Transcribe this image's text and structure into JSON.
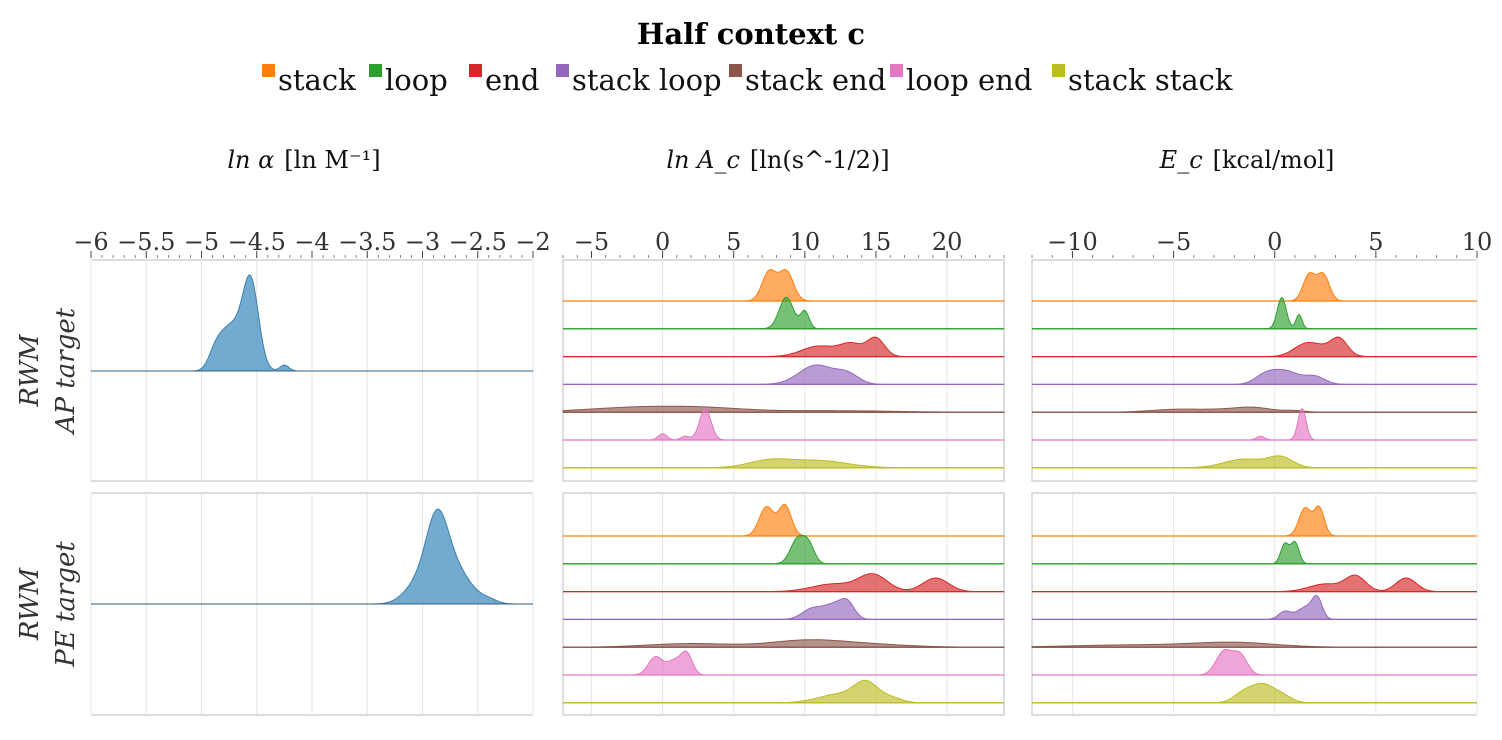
{
  "chart_data": {
    "type": "area",
    "title": "Half context c",
    "legend": [
      {
        "name": "stack",
        "color": "#ff7f0e"
      },
      {
        "name": "loop",
        "color": "#2ca02c"
      },
      {
        "name": "end",
        "color": "#d62728"
      },
      {
        "name": "stack loop",
        "color": "#9467bd"
      },
      {
        "name": "stack end",
        "color": "#8c564b"
      },
      {
        "name": "loop end",
        "color": "#e377c2"
      },
      {
        "name": "stack stack",
        "color": "#bcbd22"
      }
    ],
    "legend_position": "top-center",
    "columns": [
      {
        "label_main": "ln α",
        "label_unit": "[ln M⁻¹]",
        "xlim": [
          -6,
          -2
        ],
        "ticks": [
          -6,
          -5.5,
          -5,
          -4.5,
          -4,
          -3.5,
          -3,
          -2.5,
          -2
        ],
        "tick_labels": [
          "−6",
          "−5.5",
          "−5",
          "−4.5",
          "−4",
          "−3.5",
          "−3",
          "−2.5",
          "−2"
        ]
      },
      {
        "label_main": "ln A_c",
        "label_unit": "[ln(s^-1/2)]",
        "xlim": [
          -7,
          24
        ],
        "ticks": [
          -5,
          0,
          5,
          10,
          15,
          20
        ],
        "tick_labels": [
          "−5",
          "0",
          "5",
          "10",
          "15",
          "20"
        ]
      },
      {
        "label_main": "E_c",
        "label_unit": "[kcal/mol]",
        "xlim": [
          -12,
          10
        ],
        "ticks": [
          -10,
          -5,
          0,
          5,
          10
        ],
        "tick_labels": [
          "−10",
          "−5",
          "0",
          "5",
          "10"
        ]
      }
    ],
    "rows": [
      {
        "label_line1": "RWM",
        "label_line2": "AP target"
      },
      {
        "label_line1": "RWM",
        "label_line2": "PE target"
      }
    ],
    "alpha_panels": [
      {
        "row": 0,
        "color": "#5b9bc8",
        "components": [
          {
            "mu": -4.55,
            "sigma": 0.07,
            "w": 1.0
          },
          {
            "mu": -4.65,
            "sigma": 0.1,
            "w": 0.45
          },
          {
            "mu": -4.78,
            "sigma": 0.08,
            "w": 0.35
          },
          {
            "mu": -4.88,
            "sigma": 0.06,
            "w": 0.2
          },
          {
            "mu": -4.25,
            "sigma": 0.04,
            "w": 0.08
          }
        ]
      },
      {
        "row": 1,
        "color": "#5b9bc8",
        "components": [
          {
            "mu": -2.87,
            "sigma": 0.1,
            "w": 1.0
          },
          {
            "mu": -2.7,
            "sigma": 0.14,
            "w": 0.45
          },
          {
            "mu": -3.05,
            "sigma": 0.12,
            "w": 0.25
          },
          {
            "mu": -2.4,
            "sigma": 0.08,
            "w": 0.05
          }
        ]
      }
    ],
    "ridge_panels": [
      {
        "row": 0,
        "col": 1,
        "series": [
          {
            "name": "stack",
            "components": [
              {
                "mu": 7.5,
                "sigma": 0.5,
                "w": 1
              },
              {
                "mu": 8.7,
                "sigma": 0.5,
                "w": 1
              }
            ]
          },
          {
            "name": "loop",
            "components": [
              {
                "mu": 8.7,
                "sigma": 0.5,
                "w": 1
              },
              {
                "mu": 10.0,
                "sigma": 0.3,
                "w": 0.55
              }
            ]
          },
          {
            "name": "end",
            "components": [
              {
                "mu": 11.0,
                "sigma": 1.2,
                "w": 0.35
              },
              {
                "mu": 13.3,
                "sigma": 0.8,
                "w": 0.4
              },
              {
                "mu": 15.0,
                "sigma": 0.6,
                "w": 0.6
              }
            ]
          },
          {
            "name": "stack loop",
            "components": [
              {
                "mu": 10.8,
                "sigma": 1.2,
                "w": 0.6
              },
              {
                "mu": 13.0,
                "sigma": 0.8,
                "w": 0.3
              }
            ]
          },
          {
            "name": "stack end",
            "components": [
              {
                "mu": -2,
                "sigma": 3.5,
                "w": 0.15
              },
              {
                "mu": 3,
                "sigma": 3,
                "w": 0.12
              },
              {
                "mu": 12,
                "sigma": 4,
                "w": 0.05
              }
            ]
          },
          {
            "name": "loop end",
            "components": [
              {
                "mu": 3.0,
                "sigma": 0.4,
                "w": 1
              },
              {
                "mu": 0.0,
                "sigma": 0.3,
                "w": 0.2
              },
              {
                "mu": 1.6,
                "sigma": 0.3,
                "w": 0.12
              }
            ]
          },
          {
            "name": "stack stack",
            "components": [
              {
                "mu": 7.5,
                "sigma": 1.5,
                "w": 0.25
              },
              {
                "mu": 11.0,
                "sigma": 2,
                "w": 0.25
              }
            ]
          }
        ]
      },
      {
        "row": 1,
        "col": 1,
        "series": [
          {
            "name": "stack",
            "components": [
              {
                "mu": 7.3,
                "sigma": 0.5,
                "w": 1
              },
              {
                "mu": 8.6,
                "sigma": 0.45,
                "w": 1.05
              }
            ]
          },
          {
            "name": "loop",
            "components": [
              {
                "mu": 9.5,
                "sigma": 0.5,
                "w": 0.9
              },
              {
                "mu": 10.3,
                "sigma": 0.4,
                "w": 0.6
              }
            ]
          },
          {
            "name": "end",
            "components": [
              {
                "mu": 12,
                "sigma": 1.5,
                "w": 0.25
              },
              {
                "mu": 14.8,
                "sigma": 1,
                "w": 0.55
              },
              {
                "mu": 19.2,
                "sigma": 0.9,
                "w": 0.45
              }
            ]
          },
          {
            "name": "stack loop",
            "components": [
              {
                "mu": 10.5,
                "sigma": 0.7,
                "w": 0.45
              },
              {
                "mu": 12.0,
                "sigma": 0.7,
                "w": 0.6
              },
              {
                "mu": 13.0,
                "sigma": 0.5,
                "w": 0.65
              }
            ]
          },
          {
            "name": "stack end",
            "components": [
              {
                "mu": 2,
                "sigma": 3,
                "w": 0.12
              },
              {
                "mu": 10,
                "sigma": 2.5,
                "w": 0.2
              },
              {
                "mu": 14,
                "sigma": 3,
                "w": 0.1
              }
            ]
          },
          {
            "name": "loop end",
            "components": [
              {
                "mu": -0.5,
                "sigma": 0.5,
                "w": 0.65
              },
              {
                "mu": 0.8,
                "sigma": 0.5,
                "w": 0.5
              },
              {
                "mu": 1.7,
                "sigma": 0.4,
                "w": 0.75
              }
            ]
          },
          {
            "name": "stack stack",
            "components": [
              {
                "mu": 12.5,
                "sigma": 1.5,
                "w": 0.35
              },
              {
                "mu": 14.3,
                "sigma": 0.8,
                "w": 0.7
              },
              {
                "mu": 16,
                "sigma": 0.8,
                "w": 0.2
              }
            ]
          }
        ]
      },
      {
        "row": 0,
        "col": 2,
        "series": [
          {
            "name": "stack",
            "components": [
              {
                "mu": 1.7,
                "sigma": 0.3,
                "w": 0.9
              },
              {
                "mu": 2.4,
                "sigma": 0.3,
                "w": 0.9
              }
            ]
          },
          {
            "name": "loop",
            "components": [
              {
                "mu": 0.35,
                "sigma": 0.22,
                "w": 1.1
              },
              {
                "mu": 1.2,
                "sigma": 0.15,
                "w": 0.5
              }
            ]
          },
          {
            "name": "end",
            "components": [
              {
                "mu": 1.5,
                "sigma": 0.6,
                "w": 0.45
              },
              {
                "mu": 3.2,
                "sigma": 0.4,
                "w": 0.6
              },
              {
                "mu": 2.5,
                "sigma": 0.7,
                "w": 0.3
              }
            ]
          },
          {
            "name": "stack loop",
            "components": [
              {
                "mu": 0.5,
                "sigma": 0.7,
                "w": 0.45
              },
              {
                "mu": -0.5,
                "sigma": 0.5,
                "w": 0.25
              },
              {
                "mu": 2.0,
                "sigma": 0.5,
                "w": 0.25
              }
            ]
          },
          {
            "name": "stack end",
            "components": [
              {
                "mu": -5,
                "sigma": 1.2,
                "w": 0.1
              },
              {
                "mu": -2,
                "sigma": 1.5,
                "w": 0.12
              },
              {
                "mu": -1,
                "sigma": 0.8,
                "w": 0.1
              },
              {
                "mu": 1,
                "sigma": 0.5,
                "w": 0.05
              }
            ]
          },
          {
            "name": "loop end",
            "components": [
              {
                "mu": 1.35,
                "sigma": 0.2,
                "w": 1
              },
              {
                "mu": -0.7,
                "sigma": 0.2,
                "w": 0.12
              }
            ]
          },
          {
            "name": "stack stack",
            "components": [
              {
                "mu": -1.5,
                "sigma": 1.0,
                "w": 0.3
              },
              {
                "mu": 0.3,
                "sigma": 0.6,
                "w": 0.35
              }
            ]
          }
        ]
      },
      {
        "row": 1,
        "col": 2,
        "series": [
          {
            "name": "stack",
            "components": [
              {
                "mu": 1.5,
                "sigma": 0.3,
                "w": 0.95
              },
              {
                "mu": 2.2,
                "sigma": 0.25,
                "w": 0.95
              }
            ]
          },
          {
            "name": "loop",
            "components": [
              {
                "mu": 0.5,
                "sigma": 0.2,
                "w": 0.65
              },
              {
                "mu": 1.0,
                "sigma": 0.2,
                "w": 0.7
              }
            ]
          },
          {
            "name": "end",
            "components": [
              {
                "mu": 2.5,
                "sigma": 0.8,
                "w": 0.25
              },
              {
                "mu": 4.0,
                "sigma": 0.5,
                "w": 0.5
              },
              {
                "mu": 6.5,
                "sigma": 0.5,
                "w": 0.45
              }
            ]
          },
          {
            "name": "stack loop",
            "components": [
              {
                "mu": 0.5,
                "sigma": 0.3,
                "w": 0.3
              },
              {
                "mu": 1.5,
                "sigma": 0.4,
                "w": 0.45
              },
              {
                "mu": 2.1,
                "sigma": 0.25,
                "w": 0.75
              }
            ]
          },
          {
            "name": "stack end",
            "components": [
              {
                "mu": -7,
                "sigma": 3,
                "w": 0.06
              },
              {
                "mu": -2,
                "sigma": 2,
                "w": 0.12
              }
            ]
          },
          {
            "name": "loop end",
            "components": [
              {
                "mu": -2.5,
                "sigma": 0.4,
                "w": 0.8
              },
              {
                "mu": -1.7,
                "sigma": 0.35,
                "w": 0.65
              }
            ]
          },
          {
            "name": "stack stack",
            "components": [
              {
                "mu": -1.5,
                "sigma": 0.5,
                "w": 0.4
              },
              {
                "mu": -0.6,
                "sigma": 0.5,
                "w": 0.6
              },
              {
                "mu": 0.3,
                "sigma": 0.5,
                "w": 0.3
              }
            ]
          }
        ]
      }
    ],
    "grid": "vertical"
  }
}
